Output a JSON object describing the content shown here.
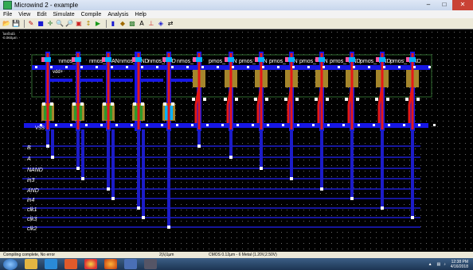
{
  "window": {
    "title": "Microwind 2 - example",
    "minimize": "–",
    "maximize": "□",
    "close": "✕"
  },
  "menu": [
    "File",
    "View",
    "Edit",
    "Simulate",
    "Compile",
    "Analysis",
    "Help"
  ],
  "toolbar_icons": [
    "open-icon",
    "save-icon",
    "draw-icon",
    "box-icon",
    "move-icon",
    "zoom-in-icon",
    "zoom-out-icon",
    "zoom-fit-icon",
    "stretch-icon",
    "run-simulation-icon",
    "mos-icon",
    "3d-view-icon",
    "palette-icon",
    "text-icon",
    "measure-icon",
    "navigate-icon",
    "arrows-icon"
  ],
  "toolbar_glyphs": [
    "📂",
    "💾",
    "✎",
    "■",
    "✛",
    "🔍",
    "🔎",
    "▣",
    "↕",
    "▶",
    "▮",
    "◆",
    "▩",
    "A",
    "⊥",
    "◈",
    "⇄"
  ],
  "scale": {
    "lambda": "lambda",
    "value": "0.060µm"
  },
  "layout": {
    "supply_vdd": "vdd+",
    "supply_vss": "VSS",
    "nmos_label": "nmos",
    "pmos_label": "pmos",
    "nand_label": "NAND",
    "and_label": "AND",
    "top_labels": [
      "nmos_",
      "nmos_",
      "N",
      "AN",
      "nmos_",
      "AND",
      "nmos_",
      "AND",
      "nmos_",
      "pmos_",
      "N",
      "AN",
      "pmos_",
      "N",
      "AN",
      "pmos_",
      "N",
      "AN",
      "pmos_",
      "N",
      "AN",
      "pmos_",
      "AND",
      "pmos_",
      "AND",
      "pmos_",
      "AND"
    ],
    "signals": [
      "B",
      "A",
      "NAND",
      "in3",
      "AND",
      "in4",
      "clk1",
      "clk3",
      "clk2"
    ]
  },
  "status": {
    "message": "Compiling complete, No error",
    "coords": "2(λ)1µm",
    "process": "CMOS 0.12µm - 6 Metal (1.20V,2.50V)"
  },
  "tray": {
    "time": "12:38 PM",
    "date": "4/16/2018"
  },
  "colors": {
    "metal": "#1717e6",
    "poly": "#e61717",
    "pdiff": "#a5862c",
    "ndiff": "#2c9a2c",
    "contact": "#ffffff",
    "via": "#00b2ff",
    "well": "#1b5e1b"
  }
}
